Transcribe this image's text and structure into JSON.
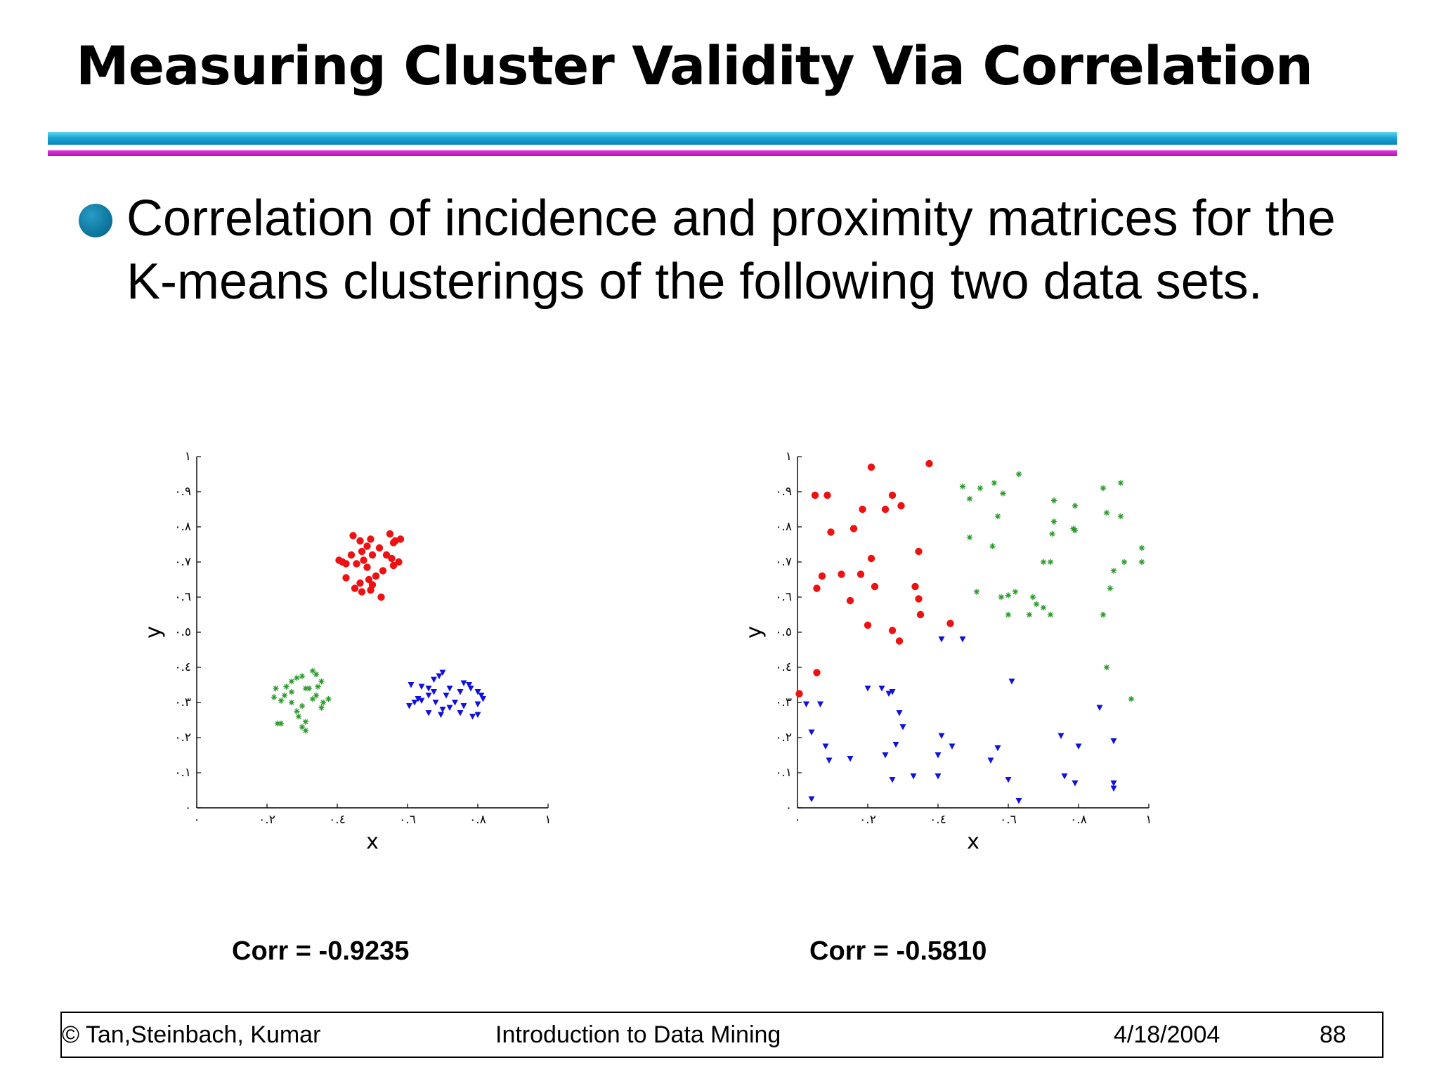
{
  "slide": {
    "title": "Measuring Cluster Validity Via Correlation",
    "bullet": "Correlation of incidence and proximity matrices for the K-means clusterings of the following two data sets.",
    "captions": [
      "Corr = -0.9235",
      "Corr = -0.5810"
    ]
  },
  "footer": {
    "copyright": "© Tan,Steinbach, Kumar",
    "course": "Introduction to Data Mining",
    "date": "4/18/2004",
    "page": "88"
  },
  "colors": {
    "cluster_red": "#ee1111",
    "cluster_green": "#2a9a2a",
    "cluster_blue": "#1111dd"
  },
  "chart_data": [
    {
      "type": "scatter",
      "xlabel": "x",
      "ylabel": "y",
      "xlim": [
        0,
        1
      ],
      "ylim": [
        0,
        1
      ],
      "xticks": [
        0,
        0.2,
        0.4,
        0.6,
        0.8,
        1
      ],
      "xtick_labels": [
        "٠",
        "٠.٢",
        "٠.٤",
        "٠.٦",
        "٠.٨",
        "١"
      ],
      "yticks": [
        0,
        0.1,
        0.2,
        0.3,
        0.4,
        0.5,
        0.6,
        0.7,
        0.8,
        0.9,
        1
      ],
      "ytick_labels": [
        "٠",
        "٠.١",
        "٠.٢",
        "٠.٣",
        "٠.٤",
        "٠.٥",
        "٠.٦",
        "٠.٧",
        "٠.٨",
        "٠.٩",
        "١"
      ],
      "grid": false,
      "series": [
        {
          "marker": "circle",
          "color": "#ee1111",
          "points": [
            [
              0.445,
              0.775
            ],
            [
              0.465,
              0.76
            ],
            [
              0.495,
              0.765
            ],
            [
              0.485,
              0.745
            ],
            [
              0.55,
              0.78
            ],
            [
              0.565,
              0.76
            ],
            [
              0.58,
              0.765
            ],
            [
              0.56,
              0.755
            ],
            [
              0.47,
              0.73
            ],
            [
              0.44,
              0.72
            ],
            [
              0.425,
              0.695
            ],
            [
              0.405,
              0.705
            ],
            [
              0.415,
              0.7
            ],
            [
              0.455,
              0.695
            ],
            [
              0.475,
              0.705
            ],
            [
              0.5,
              0.72
            ],
            [
              0.52,
              0.74
            ],
            [
              0.54,
              0.72
            ],
            [
              0.555,
              0.71
            ],
            [
              0.575,
              0.7
            ],
            [
              0.56,
              0.69
            ],
            [
              0.53,
              0.675
            ],
            [
              0.51,
              0.66
            ],
            [
              0.485,
              0.685
            ],
            [
              0.465,
              0.64
            ],
            [
              0.45,
              0.625
            ],
            [
              0.49,
              0.65
            ],
            [
              0.5,
              0.635
            ],
            [
              0.47,
              0.615
            ],
            [
              0.525,
              0.6
            ],
            [
              0.425,
              0.655
            ],
            [
              0.495,
              0.62
            ]
          ]
        },
        {
          "marker": "star",
          "color": "#2a9a2a",
          "points": [
            [
              0.22,
              0.315
            ],
            [
              0.225,
              0.34
            ],
            [
              0.255,
              0.345
            ],
            [
              0.25,
              0.32
            ],
            [
              0.24,
              0.305
            ],
            [
              0.27,
              0.36
            ],
            [
              0.285,
              0.37
            ],
            [
              0.33,
              0.39
            ],
            [
              0.34,
              0.38
            ],
            [
              0.3,
              0.375
            ],
            [
              0.345,
              0.345
            ],
            [
              0.32,
              0.34
            ],
            [
              0.355,
              0.36
            ],
            [
              0.375,
              0.31
            ],
            [
              0.36,
              0.3
            ],
            [
              0.355,
              0.285
            ],
            [
              0.33,
              0.31
            ],
            [
              0.3,
              0.29
            ],
            [
              0.285,
              0.275
            ],
            [
              0.29,
              0.26
            ],
            [
              0.3,
              0.23
            ],
            [
              0.31,
              0.245
            ],
            [
              0.31,
              0.22
            ],
            [
              0.23,
              0.24
            ],
            [
              0.24,
              0.24
            ],
            [
              0.27,
              0.3
            ],
            [
              0.31,
              0.34
            ],
            [
              0.34,
              0.32
            ],
            [
              0.27,
              0.33
            ]
          ]
        },
        {
          "marker": "triangle-down",
          "color": "#1111dd",
          "points": [
            [
              0.61,
              0.35
            ],
            [
              0.64,
              0.345
            ],
            [
              0.66,
              0.34
            ],
            [
              0.675,
              0.365
            ],
            [
              0.69,
              0.375
            ],
            [
              0.7,
              0.385
            ],
            [
              0.72,
              0.34
            ],
            [
              0.75,
              0.33
            ],
            [
              0.76,
              0.355
            ],
            [
              0.775,
              0.35
            ],
            [
              0.78,
              0.34
            ],
            [
              0.8,
              0.33
            ],
            [
              0.81,
              0.32
            ],
            [
              0.815,
              0.31
            ],
            [
              0.8,
              0.295
            ],
            [
              0.76,
              0.29
            ],
            [
              0.735,
              0.3
            ],
            [
              0.72,
              0.285
            ],
            [
              0.7,
              0.28
            ],
            [
              0.68,
              0.3
            ],
            [
              0.66,
              0.32
            ],
            [
              0.64,
              0.305
            ],
            [
              0.63,
              0.31
            ],
            [
              0.62,
              0.3
            ],
            [
              0.605,
              0.29
            ],
            [
              0.66,
              0.27
            ],
            [
              0.695,
              0.265
            ],
            [
              0.75,
              0.27
            ],
            [
              0.785,
              0.26
            ],
            [
              0.8,
              0.265
            ],
            [
              0.675,
              0.33
            ],
            [
              0.71,
              0.32
            ]
          ]
        }
      ]
    },
    {
      "type": "scatter",
      "xlabel": "x",
      "ylabel": "y",
      "xlim": [
        0,
        1
      ],
      "ylim": [
        0,
        1
      ],
      "xticks": [
        0,
        0.2,
        0.4,
        0.6,
        0.8,
        1
      ],
      "xtick_labels": [
        "٠",
        "٠.٢",
        "٠.٤",
        "٠.٦",
        "٠.٨",
        "١"
      ],
      "yticks": [
        0,
        0.1,
        0.2,
        0.3,
        0.4,
        0.5,
        0.6,
        0.7,
        0.8,
        0.9,
        1
      ],
      "ytick_labels": [
        "٠",
        "٠.١",
        "٠.٢",
        "٠.٣",
        "٠.٤",
        "٠.٥",
        "٠.٦",
        "٠.٧",
        "٠.٨",
        "٠.٩",
        "١"
      ],
      "grid": false,
      "series": [
        {
          "marker": "circle",
          "color": "#ee1111",
          "points": [
            [
              0.21,
              0.97
            ],
            [
              0.375,
              0.98
            ],
            [
              0.05,
              0.89
            ],
            [
              0.085,
              0.89
            ],
            [
              0.27,
              0.89
            ],
            [
              0.295,
              0.86
            ],
            [
              0.185,
              0.85
            ],
            [
              0.25,
              0.85
            ],
            [
              0.16,
              0.795
            ],
            [
              0.095,
              0.785
            ],
            [
              0.345,
              0.73
            ],
            [
              0.21,
              0.71
            ],
            [
              0.07,
              0.66
            ],
            [
              0.125,
              0.665
            ],
            [
              0.18,
              0.665
            ],
            [
              0.055,
              0.625
            ],
            [
              0.22,
              0.63
            ],
            [
              0.335,
              0.63
            ],
            [
              0.345,
              0.595
            ],
            [
              0.15,
              0.59
            ],
            [
              0.35,
              0.55
            ],
            [
              0.2,
              0.52
            ],
            [
              0.27,
              0.505
            ],
            [
              0.29,
              0.475
            ],
            [
              0.435,
              0.525
            ],
            [
              0.055,
              0.385
            ],
            [
              0.005,
              0.325
            ]
          ]
        },
        {
          "marker": "star",
          "color": "#2a9a2a",
          "points": [
            [
              0.47,
              0.915
            ],
            [
              0.52,
              0.91
            ],
            [
              0.56,
              0.925
            ],
            [
              0.63,
              0.95
            ],
            [
              0.49,
              0.88
            ],
            [
              0.585,
              0.895
            ],
            [
              0.73,
              0.875
            ],
            [
              0.79,
              0.86
            ],
            [
              0.87,
              0.91
            ],
            [
              0.88,
              0.84
            ],
            [
              0.92,
              0.925
            ],
            [
              0.92,
              0.83
            ],
            [
              0.57,
              0.83
            ],
            [
              0.73,
              0.815
            ],
            [
              0.725,
              0.78
            ],
            [
              0.785,
              0.795
            ],
            [
              0.79,
              0.79
            ],
            [
              0.49,
              0.77
            ],
            [
              0.555,
              0.745
            ],
            [
              0.7,
              0.7
            ],
            [
              0.72,
              0.7
            ],
            [
              0.93,
              0.7
            ],
            [
              0.98,
              0.74
            ],
            [
              0.98,
              0.7
            ],
            [
              0.9,
              0.675
            ],
            [
              0.51,
              0.615
            ],
            [
              0.58,
              0.6
            ],
            [
              0.6,
              0.605
            ],
            [
              0.62,
              0.615
            ],
            [
              0.67,
              0.6
            ],
            [
              0.68,
              0.58
            ],
            [
              0.7,
              0.57
            ],
            [
              0.6,
              0.55
            ],
            [
              0.66,
              0.55
            ],
            [
              0.89,
              0.625
            ],
            [
              0.72,
              0.55
            ],
            [
              0.87,
              0.55
            ],
            [
              0.88,
              0.4
            ],
            [
              0.95,
              0.31
            ]
          ]
        },
        {
          "marker": "triangle-down",
          "color": "#1111dd",
          "points": [
            [
              0.41,
              0.48
            ],
            [
              0.47,
              0.48
            ],
            [
              0.61,
              0.36
            ],
            [
              0.2,
              0.34
            ],
            [
              0.24,
              0.34
            ],
            [
              0.26,
              0.325
            ],
            [
              0.27,
              0.33
            ],
            [
              0.025,
              0.295
            ],
            [
              0.065,
              0.295
            ],
            [
              0.29,
              0.27
            ],
            [
              0.3,
              0.23
            ],
            [
              0.04,
              0.215
            ],
            [
              0.08,
              0.175
            ],
            [
              0.41,
              0.205
            ],
            [
              0.44,
              0.175
            ],
            [
              0.28,
              0.18
            ],
            [
              0.25,
              0.15
            ],
            [
              0.15,
              0.14
            ],
            [
              0.09,
              0.135
            ],
            [
              0.4,
              0.15
            ],
            [
              0.57,
              0.17
            ],
            [
              0.55,
              0.135
            ],
            [
              0.75,
              0.205
            ],
            [
              0.8,
              0.175
            ],
            [
              0.86,
              0.285
            ],
            [
              0.9,
              0.19
            ],
            [
              0.27,
              0.08
            ],
            [
              0.33,
              0.09
            ],
            [
              0.4,
              0.09
            ],
            [
              0.6,
              0.08
            ],
            [
              0.76,
              0.09
            ],
            [
              0.79,
              0.07
            ],
            [
              0.9,
              0.07
            ],
            [
              0.9,
              0.055
            ],
            [
              0.63,
              0.02
            ],
            [
              0.04,
              0.025
            ]
          ]
        }
      ]
    }
  ]
}
